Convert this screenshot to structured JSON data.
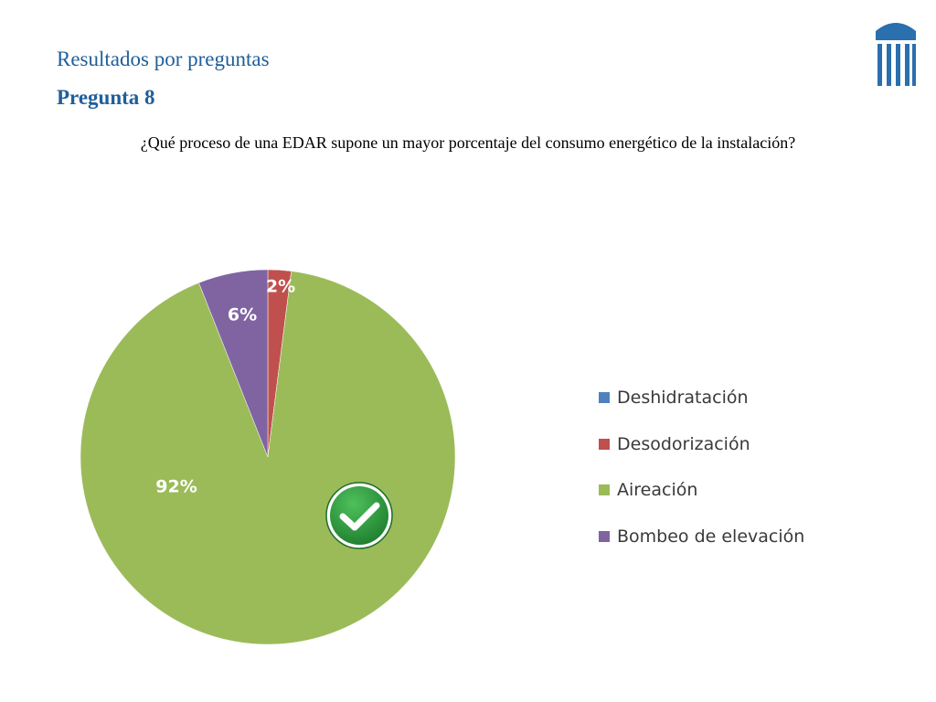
{
  "header": {
    "section_title": "Resultados por preguntas",
    "question_title": "Pregunta 8",
    "question_text": "¿Qué proceso de una EDAR supone un mayor porcentaje del consumo energético de la instalación?"
  },
  "logo": {
    "icon": "columns-logo-icon",
    "color": "#2a6fae"
  },
  "correct_marker": {
    "icon": "checkmark-icon",
    "color": "#2e9e3f"
  },
  "chart_data": {
    "type": "pie",
    "title": "",
    "categories": [
      "Deshidratación",
      "Desodorización",
      "Aireación",
      "Bombeo de elevación"
    ],
    "values": [
      0,
      2,
      92,
      6
    ],
    "data_labels": [
      "",
      "2%",
      "92%",
      "6%"
    ],
    "colors": [
      "#4f81bd",
      "#c0504d",
      "#9bbb59",
      "#8064a2"
    ],
    "legend_position": "right",
    "correct_answer": "Aireación"
  }
}
